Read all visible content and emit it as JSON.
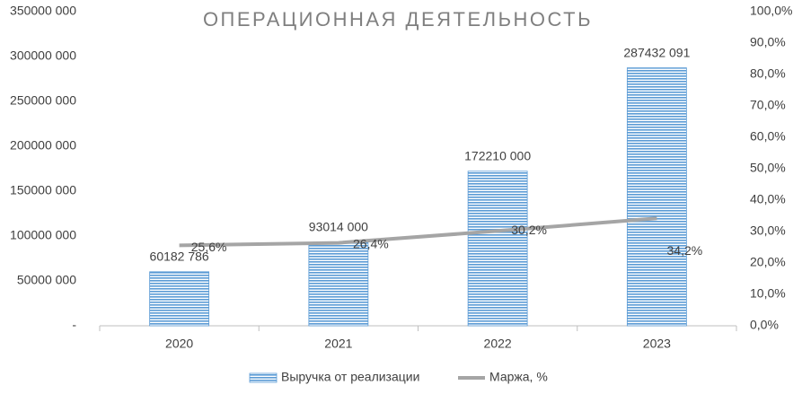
{
  "chart_data": {
    "type": "bar-line",
    "title": "ОПЕРАЦИОННАЯ ДЕЯТЕЛЬНОСТЬ",
    "categories": [
      "2020",
      "2021",
      "2022",
      "2023"
    ],
    "series": [
      {
        "name": "Выручка от реализации",
        "type": "bar",
        "color": "#5b9bd5",
        "values": [
          60182786,
          93014000,
          172210000,
          287432091
        ],
        "value_labels": [
          "60182 786",
          "93014 000",
          "172210 000",
          "287432 091"
        ]
      },
      {
        "name": "Маржа, %",
        "type": "line",
        "axis": "y2",
        "color": "#a5a5a5",
        "values": [
          25.6,
          26.4,
          30.2,
          34.2
        ],
        "value_labels": [
          "25,6%",
          "26,4%",
          "30,2%",
          "34,2%"
        ]
      }
    ],
    "ylim": [
      0,
      350000000
    ],
    "yticks": [
      {
        "value": 0,
        "label": "-"
      },
      {
        "value": 50000000,
        "label": "50000 000"
      },
      {
        "value": 100000000,
        "label": "100000 000"
      },
      {
        "value": 150000000,
        "label": "150000 000"
      },
      {
        "value": 200000000,
        "label": "200000 000"
      },
      {
        "value": 250000000,
        "label": "250000 000"
      },
      {
        "value": 300000000,
        "label": "300000 000"
      },
      {
        "value": 350000000,
        "label": "350000 000"
      }
    ],
    "y2lim": [
      0,
      100
    ],
    "y2ticks": [
      {
        "value": 0,
        "label": "0,0%"
      },
      {
        "value": 10,
        "label": "10,0%"
      },
      {
        "value": 20,
        "label": "20,0%"
      },
      {
        "value": 30,
        "label": "30,0%"
      },
      {
        "value": 40,
        "label": "40,0%"
      },
      {
        "value": 50,
        "label": "50,0%"
      },
      {
        "value": 60,
        "label": "60,0%"
      },
      {
        "value": 70,
        "label": "70,0%"
      },
      {
        "value": 80,
        "label": "80,0%"
      },
      {
        "value": 90,
        "label": "90,0%"
      },
      {
        "value": 100,
        "label": "100,0%"
      }
    ],
    "grid": false,
    "legend": "bottom"
  }
}
